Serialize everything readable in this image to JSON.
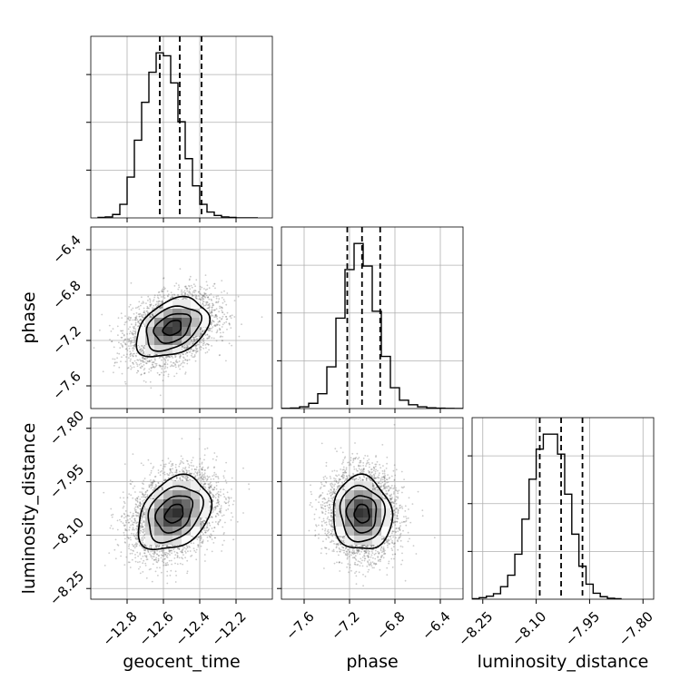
{
  "chart_data": {
    "type": "corner",
    "title": "",
    "grid": true,
    "parameters": [
      {
        "name": "geocent_time",
        "range": [
          -13.0,
          -12.0
        ],
        "ticks": [
          -12.8,
          -12.6,
          -12.4,
          -12.2
        ],
        "tick_labels": [
          "−12.8",
          "−12.6",
          "−12.4",
          "−12.2"
        ],
        "quantiles": [
          -12.62,
          -12.51,
          -12.39
        ],
        "hist_bin_edges": [
          -12.96,
          -12.92,
          -12.88,
          -12.84,
          -12.8,
          -12.76,
          -12.72,
          -12.68,
          -12.64,
          -12.6,
          -12.56,
          -12.52,
          -12.48,
          -12.44,
          -12.4,
          -12.36,
          -12.32,
          -12.28,
          -12.24,
          -12.2,
          -12.16,
          -12.12,
          -12.08
        ],
        "hist_counts": [
          1,
          2,
          7,
          28,
          84,
          160,
          238,
          300,
          340,
          334,
          278,
          198,
          122,
          66,
          28,
          12,
          5,
          2,
          1,
          0,
          0,
          0
        ]
      },
      {
        "name": "phase",
        "range": [
          -7.8,
          -6.2
        ],
        "ticks": [
          -7.6,
          -7.2,
          -6.8,
          -6.4
        ],
        "tick_labels": [
          "−7.6",
          "−7.2",
          "−6.8",
          "−6.4"
        ],
        "quantiles": [
          -7.22,
          -7.09,
          -6.93
        ],
        "hist_bin_edges": [
          -7.8,
          -7.72,
          -7.64,
          -7.56,
          -7.48,
          -7.4,
          -7.32,
          -7.24,
          -7.16,
          -7.08,
          -7.0,
          -6.92,
          -6.84,
          -6.76,
          -6.68,
          -6.6,
          -6.52,
          -6.44,
          -6.36,
          -6.28,
          -6.2
        ],
        "hist_counts": [
          1,
          3,
          10,
          30,
          85,
          240,
          520,
          800,
          950,
          820,
          560,
          300,
          120,
          48,
          22,
          10,
          4,
          2,
          1,
          0
        ]
      },
      {
        "name": "luminosity_distance",
        "range": [
          -8.28,
          -7.77
        ],
        "ticks": [
          -8.25,
          -8.1,
          -7.95,
          -7.8
        ],
        "tick_labels": [
          "−8.25",
          "−8.10",
          "−7.95",
          "−7.80"
        ],
        "quantiles": [
          -8.09,
          -8.03,
          -7.97
        ],
        "hist_bin_edges": [
          -8.28,
          -8.26,
          -8.24,
          -8.22,
          -8.2,
          -8.18,
          -8.16,
          -8.14,
          -8.12,
          -8.1,
          -8.08,
          -8.06,
          -8.04,
          -8.02,
          -8.0,
          -7.98,
          -7.96,
          -7.94,
          -7.92,
          -7.9,
          -7.88,
          -7.86
        ],
        "hist_counts": [
          1,
          3,
          6,
          11,
          25,
          48,
          90,
          160,
          240,
          300,
          330,
          330,
          290,
          210,
          130,
          66,
          30,
          12,
          5,
          2,
          1
        ]
      }
    ],
    "pairs": [
      {
        "x": "geocent_time",
        "y": "phase",
        "mean": [
          -12.55,
          -7.09
        ],
        "sigma": [
          0.1,
          0.13
        ],
        "correlation": 0.35,
        "sample_count": 4000,
        "contour_levels_sigma": [
          0.5,
          1.0,
          1.5,
          2.0
        ]
      },
      {
        "x": "geocent_time",
        "y": "luminosity_distance",
        "mean": [
          -12.54,
          -8.04
        ],
        "sigma": [
          0.1,
          0.052
        ],
        "correlation": 0.3,
        "sample_count": 4000,
        "contour_levels_sigma": [
          0.5,
          1.0,
          1.5,
          2.0
        ]
      },
      {
        "x": "phase",
        "y": "luminosity_distance",
        "mean": [
          -7.09,
          -8.04
        ],
        "sigma": [
          0.13,
          0.052
        ],
        "correlation": -0.05,
        "sample_count": 4000,
        "contour_levels_sigma": [
          0.5,
          1.0,
          1.5,
          2.0
        ]
      }
    ]
  }
}
